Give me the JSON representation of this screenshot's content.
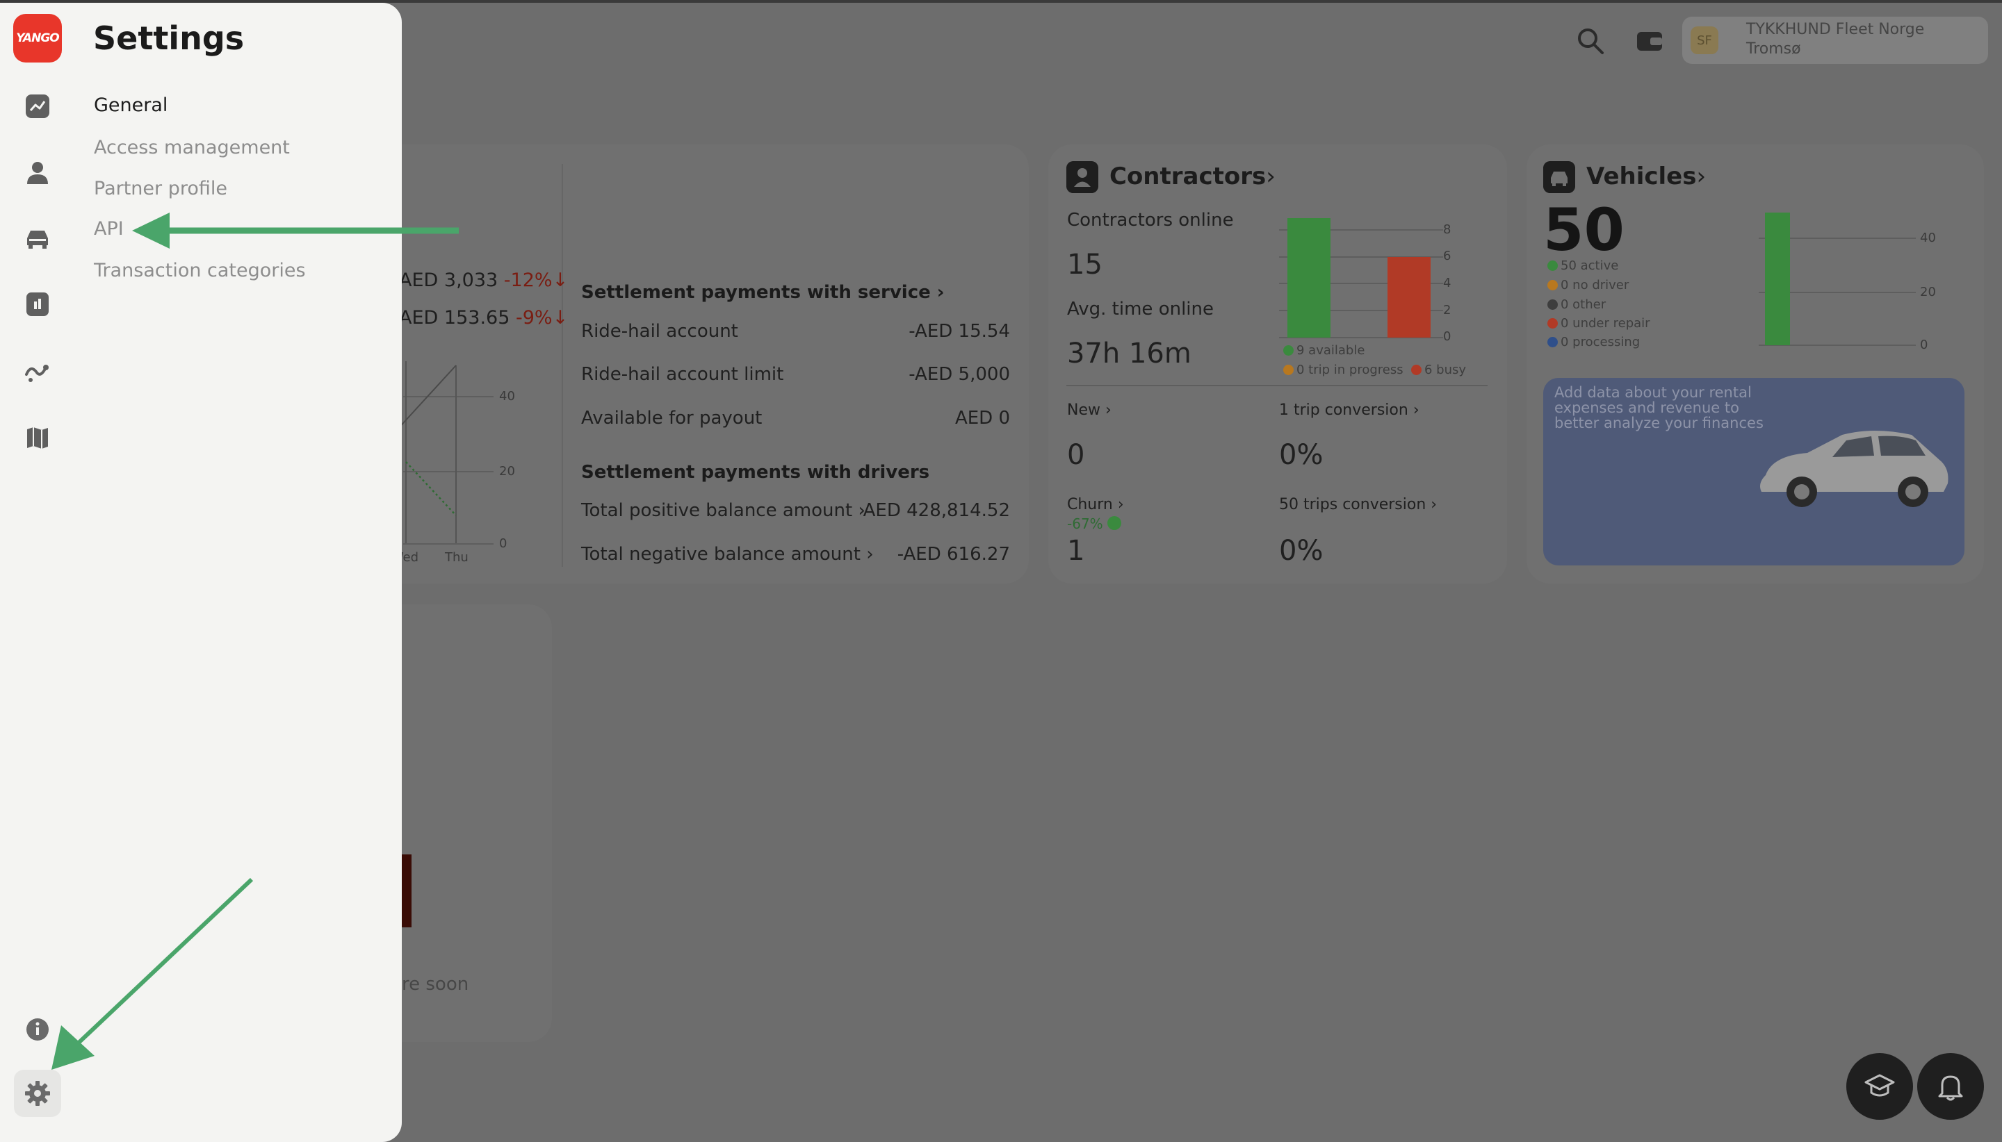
{
  "header": {
    "search_icon": "search-icon",
    "wallet_icon": "wallet-icon",
    "account": {
      "avatar_initials": "SF",
      "name": "TYKKHUND Fleet Norge",
      "city": "Tromsø"
    }
  },
  "summary_card": {
    "metric_1": {
      "value": "AED 3,033",
      "change": "-12%"
    },
    "metric_2": {
      "value": "AED 153.65",
      "change": "-9%"
    },
    "chart": {
      "y_ticks": [
        "40",
        "20",
        "0"
      ],
      "x_ticks": [
        "Wed",
        "Thu"
      ]
    },
    "settlement_service": {
      "title": "Settlement payments with service",
      "rows": [
        {
          "label": "Ride-hail account",
          "value": "-AED 15.54"
        },
        {
          "label": "Ride-hail account limit",
          "value": "-AED 5,000"
        },
        {
          "label": "Available for payout",
          "value": "AED 0"
        }
      ]
    },
    "settlement_drivers": {
      "title": "Settlement payments with drivers",
      "rows": [
        {
          "label": "Total positive balance amount",
          "value": "AED 428,814.52"
        },
        {
          "label": "Total negative balance amount",
          "value": "-AED 616.27"
        }
      ]
    }
  },
  "contractors": {
    "title": "Contractors",
    "online_label": "Contractors online",
    "online_value": "15",
    "avg_label": "Avg. time online",
    "avg_value": "37h 16m",
    "y_ticks": [
      "8",
      "6",
      "4",
      "2",
      "0"
    ],
    "legend": {
      "available": "9 available",
      "trip": "0 trip in progress",
      "busy": "6 busy"
    },
    "new_label": "New",
    "new_value": "0",
    "conv1_label": "1 trip conversion",
    "conv1_value": "0%",
    "churn_label": "Churn",
    "churn_change": "-67%",
    "churn_value": "1",
    "conv50_label": "50 trips conversion",
    "conv50_value": "0%"
  },
  "vehicles": {
    "title": "Vehicles",
    "total": "50",
    "legend": {
      "active": "50 active",
      "no_driver": "0 no driver",
      "other": "0 other",
      "repair": "0 under repair",
      "processing": "0 processing"
    },
    "y_ticks": [
      "40",
      "20",
      "0"
    ],
    "promo_text": "Add data about your rental expenses and revenue to better analyze your finances"
  },
  "bottom_card": {
    "text": "re soon"
  },
  "settings": {
    "logo": "YANGO",
    "title": "Settings",
    "menu": [
      "General",
      "Access management",
      "Partner profile",
      "API",
      "Transaction categories"
    ]
  },
  "colors": {
    "green": "#3a8a3e",
    "red": "#b13a26",
    "accent_arrow": "#4aa56a",
    "brand": "#e8362a"
  }
}
